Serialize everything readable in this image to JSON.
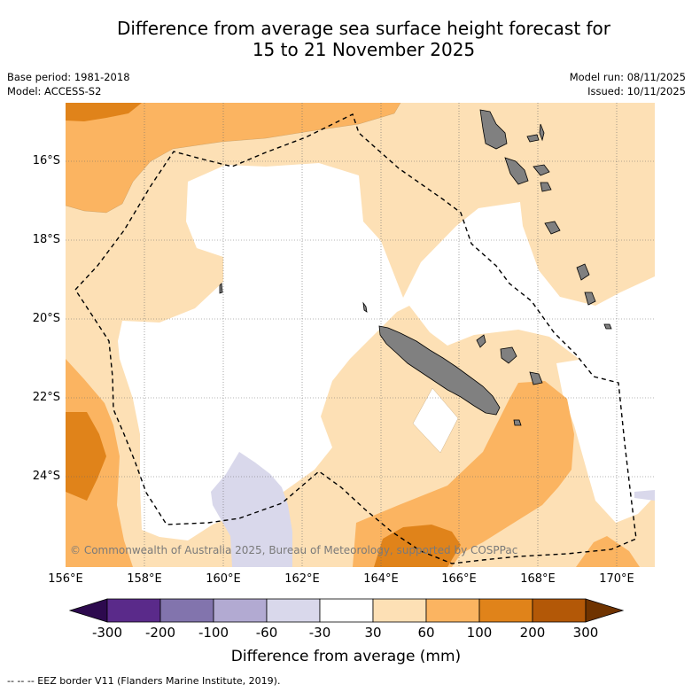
{
  "title": {
    "line1": "Difference from average sea surface height forecast for",
    "line2": "15 to 21 November 2025"
  },
  "meta": {
    "base_period": "Base period: 1981-2018",
    "model": "Model: ACCESS-S2",
    "model_run": "Model run: 08/11/2025",
    "issued": "Issued: 10/11/2025"
  },
  "axes": {
    "latitudes": [
      "16°S",
      "18°S",
      "20°S",
      "22°S",
      "24°S"
    ],
    "longitudes": [
      "156°E",
      "158°E",
      "160°E",
      "162°E",
      "164°E",
      "166°E",
      "168°E",
      "170°E"
    ]
  },
  "colorbar": {
    "ticks": [
      "-300",
      "-200",
      "-100",
      "-60",
      "-30",
      "30",
      "60",
      "100",
      "200",
      "300"
    ],
    "colors": [
      "#2d0a4e",
      "#5a2a8a",
      "#8274ad",
      "#b2aad2",
      "#d9d8eb",
      "#ffffff",
      "#fde0b5",
      "#fbb461",
      "#e0831a",
      "#b35807",
      "#6f3300"
    ],
    "label": "Difference from average (mm)"
  },
  "legend": {
    "eez": "-- -- -- EEZ border V11 (Flanders Marine Institute, 2019)."
  },
  "copyright": "© Commonwealth of Australia 2025, Bureau of Meteorology, supported by COSPPac",
  "palette": {
    "pale": "#fde0b5",
    "light": "#fbb461",
    "mid": "#e0831a",
    "lavender": "#d9d8eb",
    "land": "#808080"
  }
}
